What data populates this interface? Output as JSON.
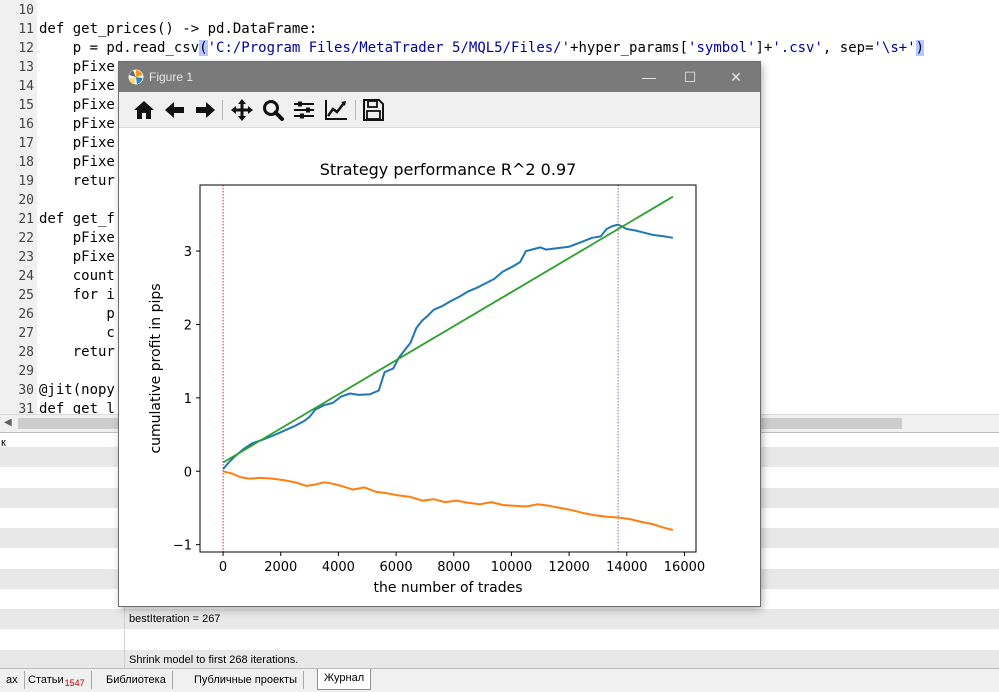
{
  "editor": {
    "lines": [
      {
        "num": "10",
        "segments": [
          {
            "t": ""
          }
        ]
      },
      {
        "num": "11",
        "segments": [
          {
            "t": "def get_prices() -> pd.DataFrame:"
          }
        ]
      },
      {
        "num": "12",
        "segments": [
          {
            "t": "    p = pd.read_csv"
          },
          {
            "t": "(",
            "cls": "hl"
          },
          {
            "t": "'C:/Program Files/MetaTrader 5/MQL5/Files/'",
            "cls": "str"
          },
          {
            "t": "+hyper_params["
          },
          {
            "t": "'symbol'",
            "cls": "str"
          },
          {
            "t": "]+"
          },
          {
            "t": "'.csv'",
            "cls": "str"
          },
          {
            "t": ", sep="
          },
          {
            "t": "'\\s+'",
            "cls": "str"
          },
          {
            "t": ")",
            "cls": "hl"
          }
        ]
      },
      {
        "num": "13",
        "segments": [
          {
            "t": "    pFixe"
          }
        ]
      },
      {
        "num": "14",
        "segments": [
          {
            "t": "    pFixe"
          }
        ]
      },
      {
        "num": "15",
        "segments": [
          {
            "t": "    pFixe"
          }
        ]
      },
      {
        "num": "16",
        "segments": [
          {
            "t": "    pFixe"
          }
        ]
      },
      {
        "num": "17",
        "segments": [
          {
            "t": "    pFixe"
          }
        ]
      },
      {
        "num": "18",
        "segments": [
          {
            "t": "    pFixe"
          }
        ]
      },
      {
        "num": "19",
        "segments": [
          {
            "t": "    retur"
          }
        ]
      },
      {
        "num": "20",
        "segments": [
          {
            "t": ""
          }
        ]
      },
      {
        "num": "21",
        "segments": [
          {
            "t": "def get_f"
          }
        ]
      },
      {
        "num": "22",
        "segments": [
          {
            "t": "    pFixe"
          }
        ]
      },
      {
        "num": "23",
        "segments": [
          {
            "t": "    pFixe"
          }
        ]
      },
      {
        "num": "24",
        "segments": [
          {
            "t": "    count"
          }
        ]
      },
      {
        "num": "25",
        "segments": [
          {
            "t": "    for i"
          }
        ]
      },
      {
        "num": "26",
        "segments": [
          {
            "t": "        p"
          }
        ]
      },
      {
        "num": "27",
        "segments": [
          {
            "t": "        c"
          }
        ]
      },
      {
        "num": "28",
        "segments": [
          {
            "t": "    retur"
          }
        ]
      },
      {
        "num": "29",
        "segments": [
          {
            "t": ""
          }
        ]
      },
      {
        "num": "30",
        "segments": [
          {
            "t": "@jit(nopy"
          }
        ]
      },
      {
        "num": "31",
        "segments": [
          {
            "t": "def get_l"
          }
        ]
      }
    ]
  },
  "journal": {
    "header": "к",
    "rows": [
      {
        "left": "",
        "text": ""
      },
      {
        "left": "",
        "text": ""
      },
      {
        "left": "",
        "text": ""
      },
      {
        "left": "",
        "text": ""
      },
      {
        "left": "",
        "text": ""
      },
      {
        "left": "",
        "text": ""
      },
      {
        "left": "",
        "text": ""
      },
      {
        "left": "",
        "text": ""
      },
      {
        "left": "",
        "text": "bestIteration = 267"
      },
      {
        "left": "",
        "text": ""
      },
      {
        "left": "",
        "text": "Shrink model to first 268 iterations."
      }
    ]
  },
  "tabs": [
    {
      "label": "ах",
      "count": ""
    },
    {
      "label": "Статьи",
      "count": "1547"
    },
    {
      "label": "Библиотека",
      "count": ""
    },
    {
      "label": "Публичные проекты",
      "count": ""
    },
    {
      "label": "Журнал",
      "count": "",
      "active": true
    }
  ],
  "figure": {
    "window_title": "Figure 1",
    "toolbar": [
      "home-icon",
      "back-arrow-icon",
      "forward-arrow-icon",
      "pan-icon",
      "zoom-icon",
      "subplots-icon",
      "axes-edit-icon",
      "save-icon"
    ]
  },
  "chart_data": {
    "type": "line",
    "title": "Strategy performance R^2 0.97",
    "xlabel": "the number of trades",
    "ylabel": "cumulative profit in pips",
    "xlim": [
      -800,
      16400
    ],
    "ylim": [
      -1.1,
      3.9
    ],
    "xticks": [
      0,
      2000,
      4000,
      6000,
      8000,
      10000,
      12000,
      14000,
      16000
    ],
    "yticks": [
      -1,
      0,
      1,
      2,
      3
    ],
    "colors": {
      "series1": "#1f77b4",
      "series2": "#ff7f0e",
      "fit": "#2ca02c",
      "vline": "#d62728",
      "vline2": "#9467bd"
    },
    "vlines": [
      0,
      13700
    ],
    "series": [
      {
        "key": "series1",
        "color": "#1f77b4",
        "x": [
          0,
          150,
          400,
          700,
          1000,
          1300,
          1700,
          2100,
          2500,
          2800,
          3000,
          3200,
          3500,
          3800,
          4100,
          4400,
          4700,
          5100,
          5400,
          5600,
          5900,
          6100,
          6300,
          6500,
          6700,
          6900,
          7100,
          7300,
          7600,
          7900,
          8200,
          8500,
          8800,
          9100,
          9400,
          9700,
          10000,
          10300,
          10500,
          10800,
          11000,
          11200,
          11600,
          12000,
          12400,
          12800,
          13100,
          13300,
          13500,
          13700,
          14000,
          14300,
          14600,
          14900,
          15300,
          15600
        ],
        "y": [
          0.03,
          0.1,
          0.2,
          0.3,
          0.38,
          0.42,
          0.48,
          0.55,
          0.62,
          0.68,
          0.74,
          0.84,
          0.9,
          0.93,
          1.02,
          1.06,
          1.04,
          1.05,
          1.1,
          1.35,
          1.4,
          1.55,
          1.65,
          1.75,
          1.95,
          2.05,
          2.12,
          2.2,
          2.25,
          2.32,
          2.38,
          2.45,
          2.5,
          2.56,
          2.62,
          2.72,
          2.78,
          2.85,
          3.0,
          3.03,
          3.05,
          3.02,
          3.04,
          3.06,
          3.12,
          3.18,
          3.2,
          3.3,
          3.34,
          3.36,
          3.3,
          3.28,
          3.25,
          3.22,
          3.2,
          3.18
        ]
      },
      {
        "key": "series2",
        "color": "#ff7f0e",
        "x": [
          0,
          300,
          600,
          900,
          1300,
          1700,
          2100,
          2500,
          2900,
          3200,
          3500,
          3800,
          4100,
          4500,
          4900,
          5300,
          5700,
          6100,
          6500,
          6900,
          7300,
          7700,
          8100,
          8500,
          8900,
          9300,
          9700,
          10100,
          10500,
          10900,
          11300,
          11700,
          12100,
          12500,
          12900,
          13300,
          13700,
          14100,
          14500,
          14900,
          15300,
          15600
        ],
        "y": [
          0,
          -0.03,
          -0.08,
          -0.1,
          -0.09,
          -0.1,
          -0.12,
          -0.15,
          -0.2,
          -0.18,
          -0.15,
          -0.17,
          -0.2,
          -0.25,
          -0.22,
          -0.28,
          -0.3,
          -0.33,
          -0.35,
          -0.4,
          -0.38,
          -0.42,
          -0.4,
          -0.43,
          -0.45,
          -0.42,
          -0.46,
          -0.47,
          -0.48,
          -0.45,
          -0.47,
          -0.5,
          -0.53,
          -0.57,
          -0.6,
          -0.62,
          -0.63,
          -0.65,
          -0.69,
          -0.72,
          -0.77,
          -0.8
        ]
      },
      {
        "key": "fit",
        "color": "#2ca02c",
        "x": [
          0,
          15600
        ],
        "y": [
          0.12,
          3.74
        ]
      }
    ]
  }
}
